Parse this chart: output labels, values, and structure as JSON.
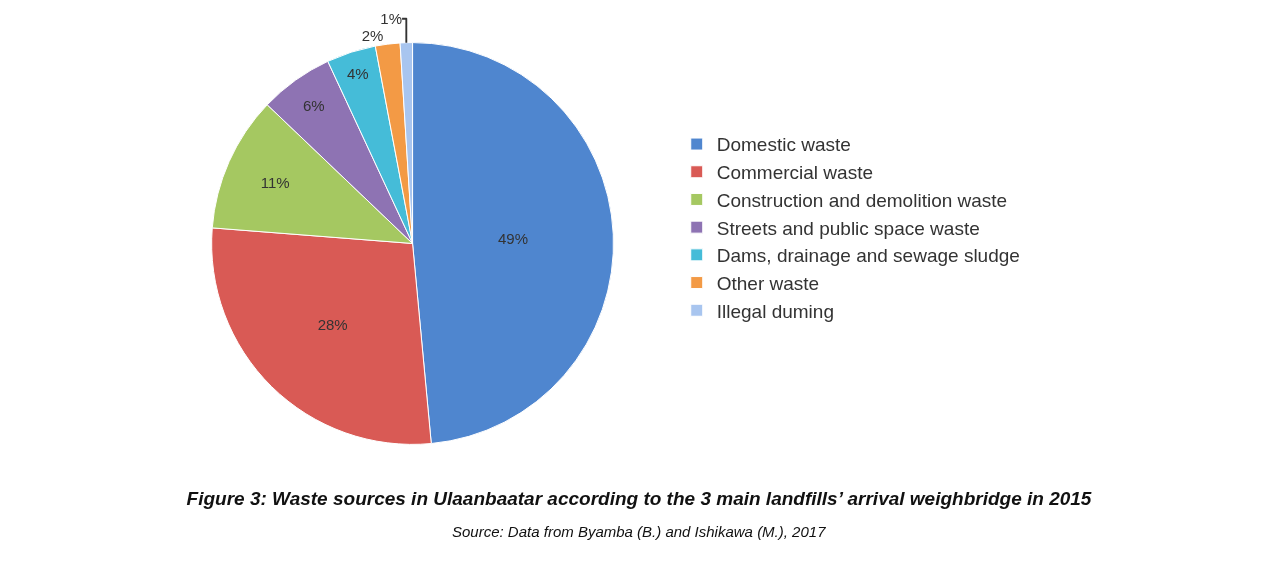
{
  "chart_data": {
    "type": "pie",
    "title": "Figure 3: Waste sources in Ulaanbaatar according to the 3 main landfills’ arrival weighbridge in 2015",
    "annotations": [
      "Source: Data from Byamba (B.) and Ishikawa (M.), 2017"
    ],
    "categories": [
      "Domestic waste",
      "Commercial waste",
      "Construction and demolition waste",
      "Streets and public space waste",
      "Dams, drainage and sewage sludge",
      "Other waste",
      "Illegal duming"
    ],
    "values": [
      49,
      28,
      11,
      6,
      4,
      2,
      1
    ],
    "value_labels": [
      "49%",
      "28%",
      "11%",
      "6%",
      "4%",
      "2%",
      "1%"
    ],
    "colors": [
      "#4f86cf",
      "#d95a55",
      "#a5c861",
      "#8e73b3",
      "#45bcd8",
      "#f39a45",
      "#a8c5ef"
    ],
    "legend": "right"
  }
}
